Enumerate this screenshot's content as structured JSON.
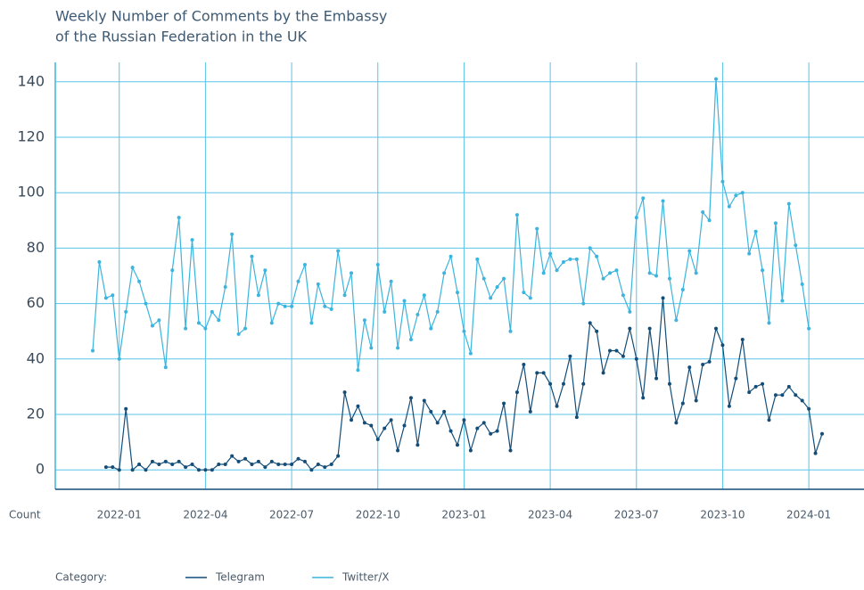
{
  "chart_data": {
    "type": "line",
    "title": "Weekly Number of Comments by the Embassy",
    "subtitle": "of the Russian Federation in the UK",
    "y_label": "Count",
    "legend_title": "Category:",
    "categories": [
      null,
      null,
      null,
      null,
      "2022-01",
      null,
      null,
      null,
      null,
      null,
      null,
      null,
      null,
      null,
      null,
      null,
      null,
      "2022-04",
      null,
      null,
      null,
      null,
      null,
      null,
      null,
      null,
      null,
      null,
      null,
      null,
      "2022-07",
      null,
      null,
      null,
      null,
      null,
      null,
      null,
      null,
      null,
      null,
      null,
      null,
      "2022-10",
      null,
      null,
      null,
      null,
      null,
      null,
      null,
      null,
      null,
      null,
      null,
      null,
      "2023-01",
      null,
      null,
      null,
      null,
      null,
      null,
      null,
      null,
      null,
      null,
      null,
      null,
      "2023-04",
      null,
      null,
      null,
      null,
      null,
      null,
      null,
      null,
      null,
      null,
      null,
      null,
      "2023-07",
      null,
      null,
      null,
      null,
      null,
      null,
      null,
      null,
      null,
      null,
      null,
      null,
      "2023-10",
      null,
      null,
      null,
      null,
      null,
      null,
      null,
      null,
      null,
      null,
      null,
      null,
      "2024-01",
      null,
      null
    ],
    "series": [
      {
        "name": "Telegram",
        "color": "#134d78",
        "values": [
          null,
          null,
          1,
          1,
          0,
          22,
          0,
          2,
          0,
          3,
          2,
          3,
          2,
          3,
          1,
          2,
          0,
          0,
          0,
          2,
          2,
          5,
          3,
          4,
          2,
          3,
          1,
          3,
          2,
          2,
          2,
          4,
          3,
          0,
          2,
          1,
          2,
          5,
          28,
          18,
          23,
          17,
          16,
          11,
          15,
          18,
          7,
          16,
          26,
          9,
          25,
          21,
          17,
          21,
          14,
          9,
          18,
          7,
          15,
          17,
          13,
          14,
          24,
          7,
          28,
          38,
          21,
          35,
          35,
          31,
          23,
          31,
          41,
          19,
          31,
          53,
          50,
          35,
          43,
          43,
          41,
          51,
          40,
          26,
          51,
          33,
          62,
          31,
          17,
          24,
          37,
          25,
          38,
          39,
          51,
          45,
          23,
          33,
          47,
          28,
          30,
          31,
          18,
          27,
          27,
          30,
          27,
          25,
          22,
          6,
          13
        ]
      },
      {
        "name": "Twitter/X",
        "color": "#3cb4de",
        "values": [
          43,
          75,
          62,
          63,
          40,
          57,
          73,
          68,
          60,
          52,
          54,
          37,
          72,
          91,
          51,
          83,
          53,
          51,
          57,
          54,
          66,
          85,
          49,
          51,
          77,
          63,
          72,
          53,
          60,
          59,
          59,
          68,
          74,
          53,
          67,
          59,
          58,
          79,
          63,
          71,
          36,
          54,
          44,
          74,
          57,
          68,
          44,
          61,
          47,
          56,
          63,
          51,
          57,
          71,
          77,
          64,
          50,
          42,
          76,
          69,
          62,
          66,
          69,
          50,
          92,
          64,
          62,
          87,
          71,
          78,
          72,
          75,
          76,
          76,
          60,
          80,
          77,
          69,
          71,
          72,
          63,
          57,
          91,
          98,
          71,
          70,
          97,
          69,
          54,
          65,
          79,
          71,
          93,
          90,
          141,
          104,
          95,
          99,
          100,
          78,
          86,
          72,
          53,
          89,
          61,
          96,
          81,
          67,
          51,
          null,
          null
        ]
      }
    ],
    "ylim": [
      -7,
      147
    ],
    "yticks": [
      0,
      20,
      40,
      60,
      80,
      100,
      120,
      140
    ],
    "grid": true
  }
}
